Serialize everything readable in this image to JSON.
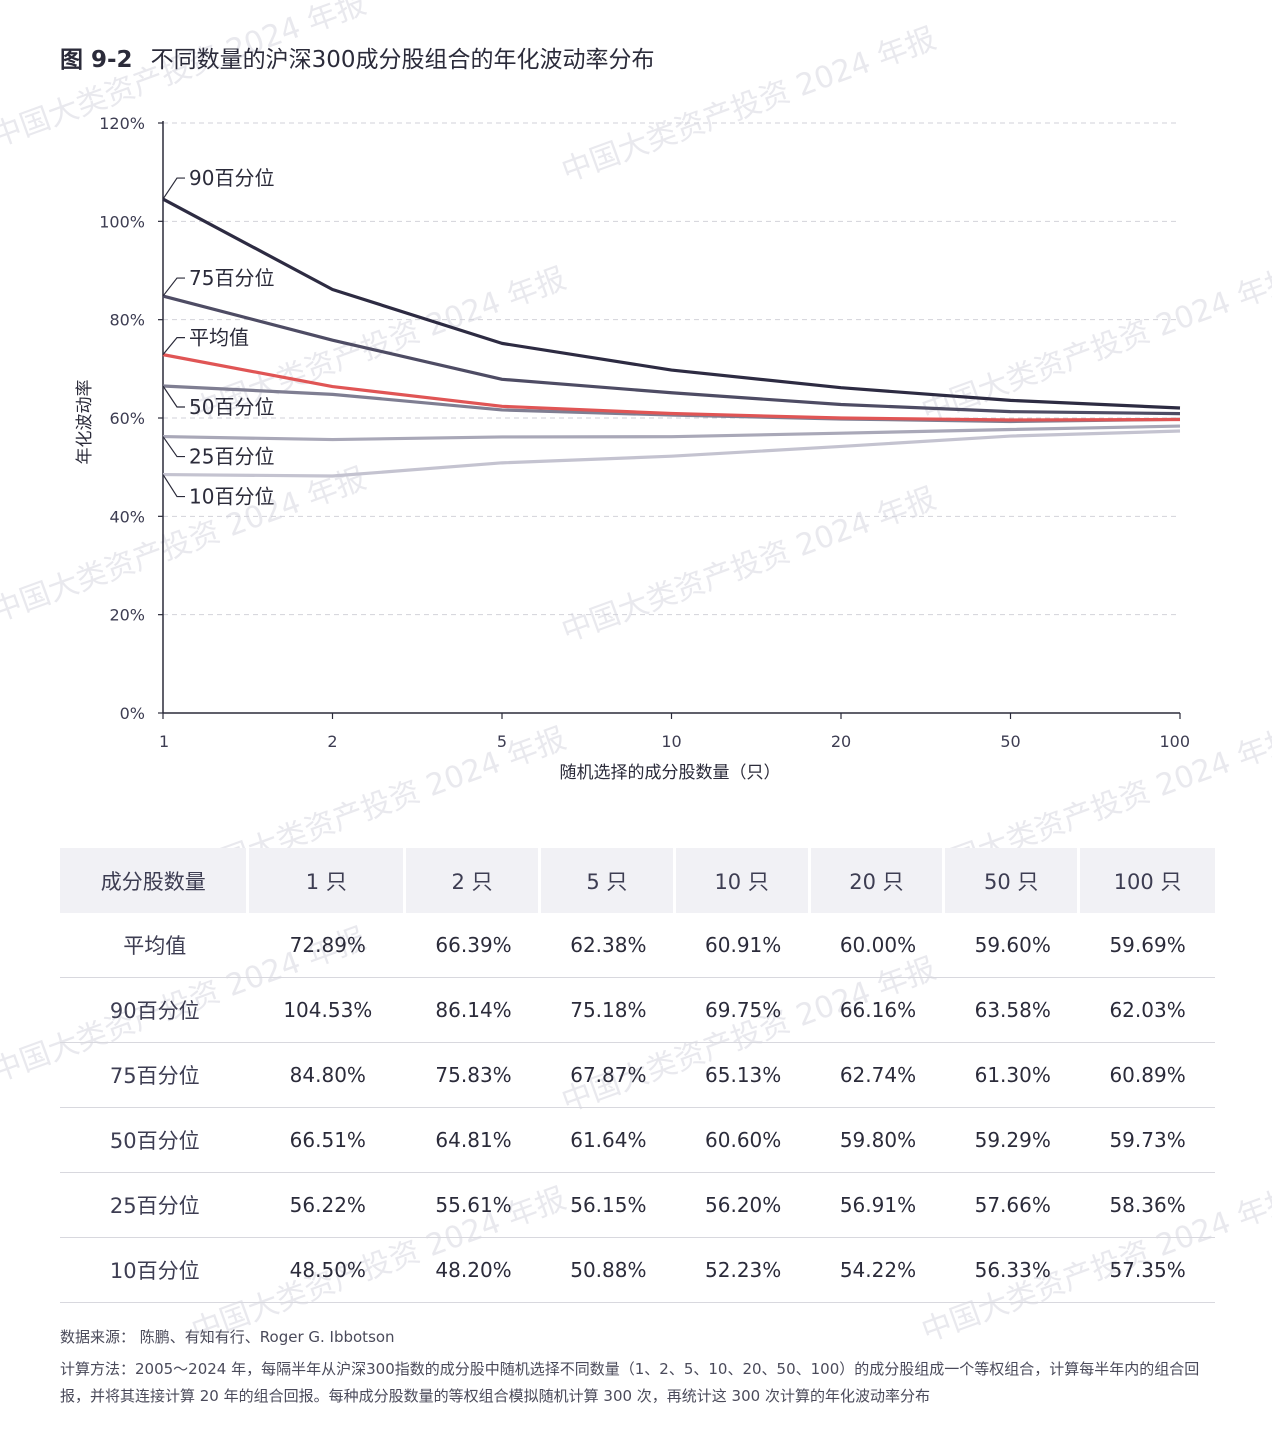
{
  "title": {
    "number": "图 9-2",
    "text": "不同数量的沪深300成分股组合的年化波动率分布"
  },
  "watermark": "中国大类资产投资 2024 年报",
  "chart_data": {
    "type": "line",
    "categories": [
      "1",
      "2",
      "5",
      "10",
      "20",
      "50",
      "100"
    ],
    "xlabel": "随机选择的成分股数量（只）",
    "ylabel": "年化波动率",
    "ylim": [
      0,
      120
    ],
    "yticks": [
      "0%",
      "20%",
      "40%",
      "60%",
      "80%",
      "100%",
      "120%"
    ],
    "grid": true,
    "series": [
      {
        "name": "90百分位",
        "color": "#2d2b42",
        "values": [
          104.53,
          86.14,
          75.18,
          69.75,
          66.16,
          63.58,
          62.03
        ]
      },
      {
        "name": "75百分位",
        "color": "#4e4c64",
        "values": [
          84.8,
          75.83,
          67.87,
          65.13,
          62.74,
          61.3,
          60.89
        ]
      },
      {
        "name": "平均值",
        "color": "#e05555",
        "values": [
          72.89,
          66.39,
          62.38,
          60.91,
          60.0,
          59.6,
          59.69
        ]
      },
      {
        "name": "50百分位",
        "color": "#7f7e92",
        "values": [
          66.51,
          64.81,
          61.64,
          60.6,
          59.8,
          59.29,
          59.73
        ]
      },
      {
        "name": "25百分位",
        "color": "#a9a8b8",
        "values": [
          56.22,
          55.61,
          56.15,
          56.2,
          56.91,
          57.66,
          58.36
        ]
      },
      {
        "name": "10百分位",
        "color": "#c4c3d0",
        "values": [
          48.5,
          48.2,
          50.88,
          52.23,
          54.22,
          56.33,
          57.35
        ]
      }
    ]
  },
  "table": {
    "header": [
      "成分股数量",
      "1 只",
      "2 只",
      "5 只",
      "10 只",
      "20 只",
      "50 只",
      "100 只"
    ],
    "rows": [
      [
        "平均值",
        "72.89%",
        "66.39%",
        "62.38%",
        "60.91%",
        "60.00%",
        "59.60%",
        "59.69%"
      ],
      [
        "90百分位",
        "104.53%",
        "86.14%",
        "75.18%",
        "69.75%",
        "66.16%",
        "63.58%",
        "62.03%"
      ],
      [
        "75百分位",
        "84.80%",
        "75.83%",
        "67.87%",
        "65.13%",
        "62.74%",
        "61.30%",
        "60.89%"
      ],
      [
        "50百分位",
        "66.51%",
        "64.81%",
        "61.64%",
        "60.60%",
        "59.80%",
        "59.29%",
        "59.73%"
      ],
      [
        "25百分位",
        "56.22%",
        "55.61%",
        "56.15%",
        "56.20%",
        "56.91%",
        "57.66%",
        "58.36%"
      ],
      [
        "10百分位",
        "48.50%",
        "48.20%",
        "50.88%",
        "52.23%",
        "54.22%",
        "56.33%",
        "57.35%"
      ]
    ]
  },
  "source": "数据来源： 陈鹏、有知有行、Roger G. Ibbotson",
  "method": "计算方法：2005～2024 年，每隔半年从沪深300指数的成分股中随机选择不同数量（1、2、5、10、20、50、100）的成分股组成一个等权组合，计算每半年内的组合回报，并将其连接计算 20 年的组合回报。每种成分股数量的等权组合模拟随机计算 300 次，再统计这 300 次计算的年化波动率分布"
}
